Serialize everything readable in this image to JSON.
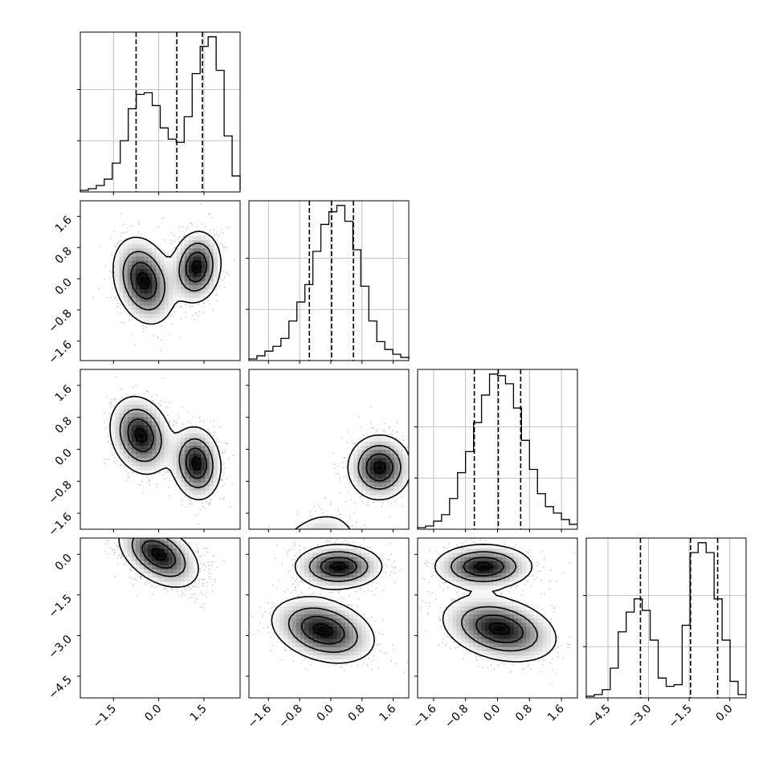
{
  "chart_data": {
    "type": "corner",
    "grid": true,
    "variables": [
      {
        "range": [
          -2.6,
          2.7
        ],
        "tick_labels": [
          "−1.5",
          "0.0",
          "1.5"
        ],
        "ticks": [
          -1.5,
          0.0,
          1.5
        ],
        "quantiles": [
          -0.75,
          0.6,
          1.45
        ],
        "histogram": {
          "start": -2.6,
          "step": 0.265,
          "counts": [
            1,
            2,
            4,
            8,
            18,
            32,
            52,
            61,
            62,
            54,
            40,
            33,
            31,
            47,
            74,
            91,
            97,
            76,
            35,
            10,
            1
          ]
        }
      },
      {
        "range": [
          -2.1,
          2.0
        ],
        "tick_labels": [
          "−1.6",
          "−0.8",
          "0.0",
          "0.8",
          "1.6"
        ],
        "ticks": [
          -1.6,
          -0.8,
          0.0,
          0.8,
          1.6
        ],
        "quantiles": [
          -0.55,
          0.02,
          0.58
        ],
        "histogram": {
          "start": -2.1,
          "step": 0.205,
          "counts": [
            1,
            3,
            6,
            9,
            14,
            25,
            37,
            48,
            69,
            86,
            94,
            98,
            88,
            70,
            47,
            25,
            12,
            7,
            4,
            2,
            1
          ]
        }
      },
      {
        "range": [
          -2.0,
          2.0
        ],
        "tick_labels": [
          "−1.6",
          "−0.8",
          "0.0",
          "0.8",
          "1.6"
        ],
        "ticks": [
          -1.6,
          -0.8,
          0.0,
          0.8,
          1.6
        ],
        "quantiles": [
          -0.58,
          0.02,
          0.58
        ],
        "histogram": {
          "start": -2.0,
          "step": 0.2,
          "counts": [
            1,
            2,
            5,
            9,
            19,
            35,
            48,
            66,
            83,
            96,
            95,
            90,
            75,
            55,
            37,
            22,
            14,
            10,
            6,
            3
          ]
        }
      },
      {
        "range": [
          -5.3,
          0.6
        ],
        "tick_labels": [
          "−4.5",
          "−3.0",
          "−1.5",
          "0.0"
        ],
        "ticks": [
          -4.5,
          -3.0,
          -1.5,
          0.0
        ],
        "quantiles": [
          -3.3,
          -1.45,
          -0.45
        ],
        "histogram": {
          "start": -5.3,
          "step": 0.295,
          "counts": [
            1,
            2,
            5,
            18,
            40,
            52,
            60,
            53,
            35,
            12,
            7,
            8,
            44,
            88,
            94,
            88,
            60,
            35,
            10,
            2
          ]
        }
      }
    ],
    "density_blobs": [
      [
        [
          [
            -0.5,
            -0.05,
            0.5,
            0.55,
            -0.25,
            0.5
          ],
          [
            1.25,
            0.3,
            0.4,
            0.45,
            0.1,
            0.5
          ]
        ]
      ],
      [
        [
          [
            -0.6,
            0.35,
            0.5,
            0.48,
            -0.2,
            0.5
          ],
          [
            1.25,
            -0.35,
            0.4,
            0.45,
            -0.1,
            0.5
          ]
        ]
      ],
      [
        [
          [
            -0.5,
            -2.9,
            0.55,
            0.6,
            0.35,
            0.5
          ],
          [
            1.25,
            -0.45,
            0.4,
            0.4,
            0.0,
            0.5
          ]
        ]
      ],
      [
        [
          [
            0.0,
            0.0,
            0.65,
            0.6,
            -0.45,
            1.0
          ]
        ]
      ],
      [
        [
          [
            -0.2,
            -2.8,
            0.65,
            0.6,
            -0.3,
            0.5
          ],
          [
            0.2,
            -0.45,
            0.55,
            0.4,
            0.0,
            0.5
          ]
        ]
      ],
      [
        [
          [
            0.05,
            -2.75,
            0.7,
            0.6,
            -0.3,
            0.5
          ],
          [
            -0.35,
            -0.45,
            0.6,
            0.4,
            0.0,
            0.5
          ]
        ]
      ]
    ]
  }
}
